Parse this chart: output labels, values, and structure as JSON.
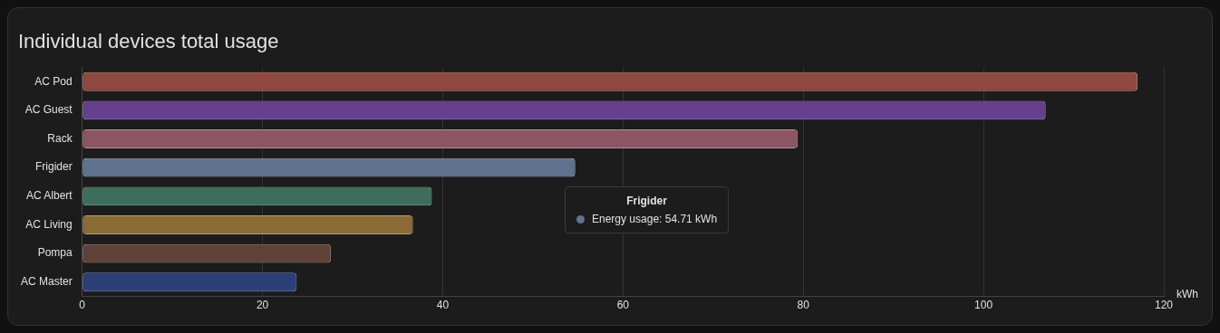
{
  "chart_data": {
    "type": "bar",
    "orientation": "horizontal",
    "title": "Individual devices total usage",
    "xlabel": "kWh",
    "categories": [
      "AC Pod",
      "AC Guest",
      "Rack",
      "Frigider",
      "AC Albert",
      "AC Living",
      "Pompa",
      "AC Master"
    ],
    "values": [
      117.1,
      106.9,
      79.4,
      54.71,
      38.8,
      36.7,
      27.6,
      23.8
    ],
    "colors": [
      "#914840",
      "#663f8f",
      "#8d5463",
      "#5f7391",
      "#3d6e5c",
      "#8a6b35",
      "#5e4237",
      "#2d3f78"
    ],
    "xlim": [
      0,
      120
    ],
    "xticks": [
      0,
      20,
      40,
      60,
      80,
      100,
      120
    ],
    "grid": "x",
    "legend": false,
    "annotations": [
      "Frigider",
      "Energy usage: 54.71 kWh"
    ]
  }
}
